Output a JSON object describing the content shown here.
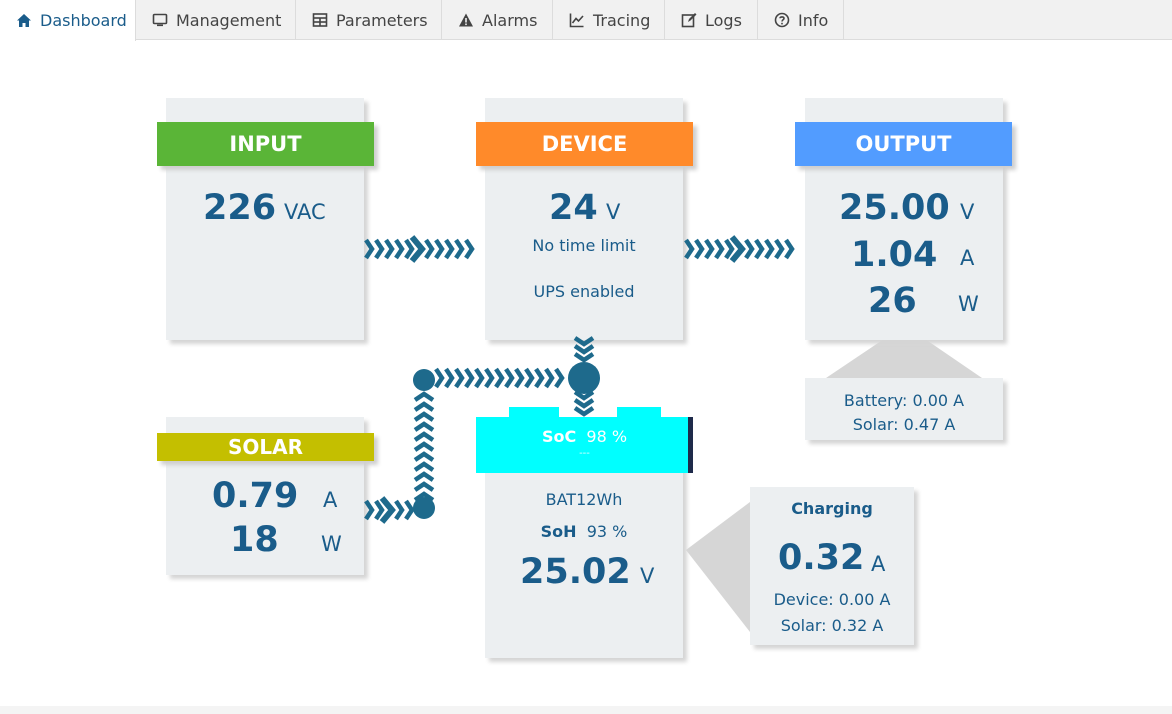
{
  "tabs": [
    {
      "label": "Dashboard",
      "icon": "home-icon",
      "active": true
    },
    {
      "label": "Management",
      "icon": "monitor-icon",
      "active": false
    },
    {
      "label": "Parameters",
      "icon": "table-icon",
      "active": false
    },
    {
      "label": "Alarms",
      "icon": "warning-icon",
      "active": false
    },
    {
      "label": "Tracing",
      "icon": "chart-icon",
      "active": false
    },
    {
      "label": "Logs",
      "icon": "edit-icon",
      "active": false
    },
    {
      "label": "Info",
      "icon": "question-icon",
      "active": false
    }
  ],
  "input": {
    "title": "INPUT",
    "value": "226",
    "unit": "VAC",
    "color": "#5ab537"
  },
  "device": {
    "title": "DEVICE",
    "value": "24",
    "unit": "V",
    "line1": "No time limit",
    "line2": "UPS enabled",
    "color": "#ff8a2a"
  },
  "output": {
    "title": "OUTPUT",
    "voltage": "25.00",
    "voltage_unit": "V",
    "current": "1.04",
    "current_unit": "A",
    "power": "26",
    "power_unit": "W",
    "color": "#529cff"
  },
  "output_detail": {
    "battery": "Battery: 0.00 A",
    "solar": "Solar: 0.47 A"
  },
  "solar": {
    "title": "SOLAR",
    "current": "0.79",
    "current_unit": "A",
    "power": "18",
    "power_unit": "W",
    "color": "#c4bf00"
  },
  "battery": {
    "soc_label": "SoC",
    "soc_value": "98 %",
    "soc_sub": "---",
    "name": "BAT12Wh",
    "soh_label": "SoH",
    "soh_value": "93 %",
    "voltage": "25.02",
    "voltage_unit": "V",
    "color": "#00ffff"
  },
  "charging": {
    "title": "Charging",
    "current": "0.32",
    "unit": "A",
    "device": "Device: 0.00 A",
    "solar": "Solar: 0.32 A"
  },
  "colors": {
    "accent": "#1a5c8a",
    "arrow": "#1e6a8c",
    "card_bg": "#eceff1"
  }
}
